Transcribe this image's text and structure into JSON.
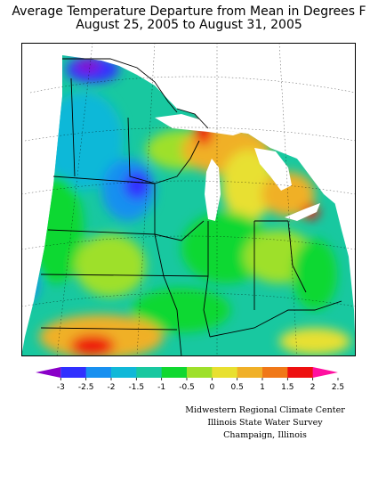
{
  "title_line1": "Average Temperature Departure from Mean in Degrees F",
  "title_line2": "August 25, 2005 to August 31, 2005",
  "legend": {
    "ticks": [
      "-3",
      "-2.5",
      "-2",
      "-1.5",
      "-1",
      "-0.5",
      "0",
      "0.5",
      "1",
      "1.5",
      "2",
      "2.5"
    ],
    "colors": [
      "#8a00c8",
      "#3030ff",
      "#1890f0",
      "#10b8d8",
      "#18c8a0",
      "#10d830",
      "#9ee02a",
      "#e8e030",
      "#f0b028",
      "#f07818",
      "#ee1010",
      "#ff10a0"
    ]
  },
  "credits": [
    "Midwestern Regional Climate Center",
    "Illinois State Water Survey",
    "Champaign, Illinois"
  ]
}
